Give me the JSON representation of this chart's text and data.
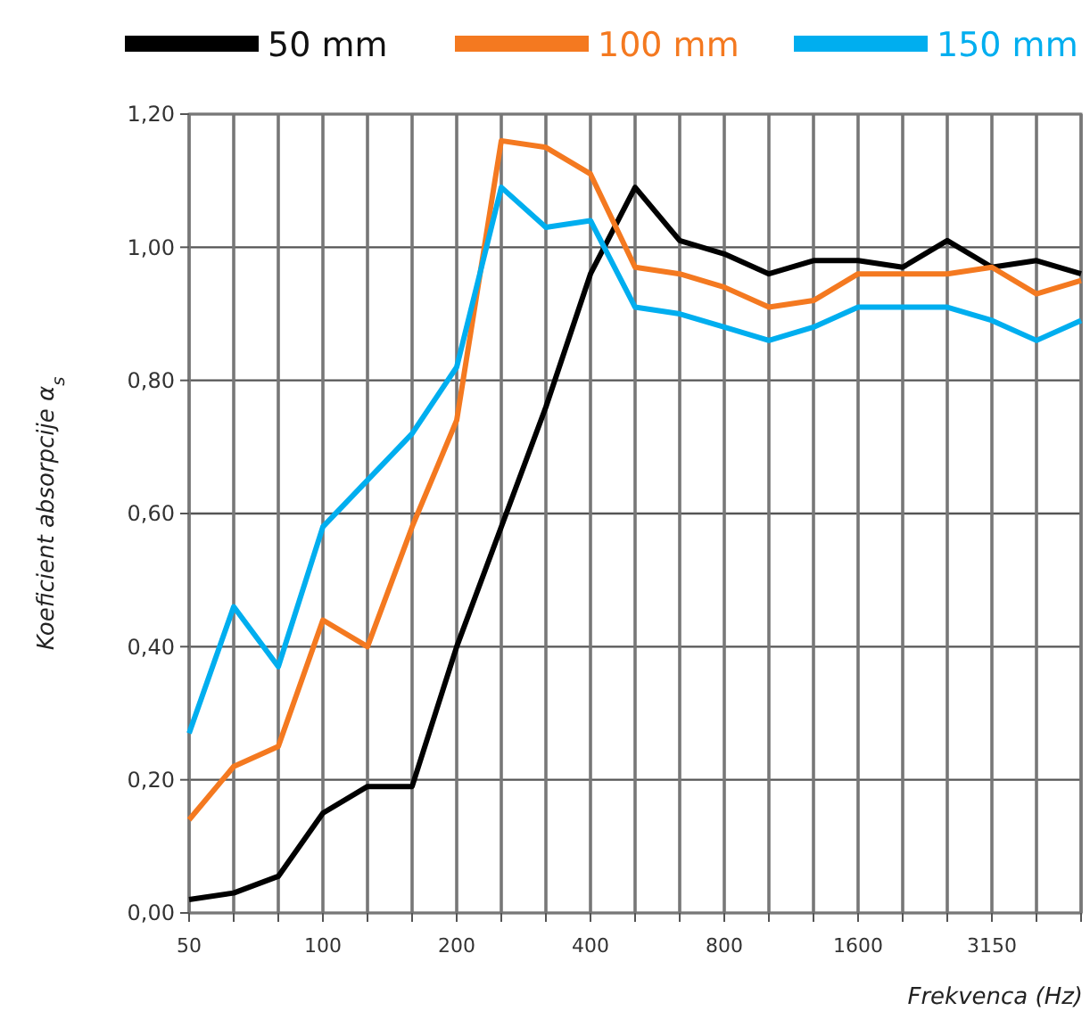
{
  "chart_data": {
    "type": "line",
    "xlabel": "Frekvenca (Hz)",
    "ylabel": "Koeficient absorpcije α$_{s}$",
    "categories": [
      "50",
      null,
      null,
      "100",
      null,
      null,
      "200",
      null,
      null,
      "400",
      null,
      null,
      "800",
      null,
      null,
      "1600",
      null,
      null,
      "3150",
      null,
      null
    ],
    "series": [
      {
        "name": "50 mm",
        "color": "#000000",
        "values": [
          0.02,
          0.03,
          0.055,
          0.15,
          0.19,
          0.19,
          0.4,
          0.58,
          0.76,
          0.96,
          1.09,
          1.01,
          0.99,
          0.96,
          0.98,
          0.98,
          0.97,
          1.01,
          0.97,
          0.98,
          0.96
        ]
      },
      {
        "name": "100 mm",
        "color": "#f47920",
        "values": [
          0.14,
          0.22,
          0.25,
          0.44,
          0.4,
          0.58,
          0.74,
          1.16,
          1.15,
          1.11,
          0.97,
          0.96,
          0.94,
          0.91,
          0.92,
          0.96,
          0.96,
          0.96,
          0.97,
          0.93,
          0.95
        ]
      },
      {
        "name": "150 mm",
        "color": "#00aeef",
        "values": [
          0.27,
          0.46,
          0.37,
          0.58,
          0.65,
          0.72,
          0.82,
          1.09,
          1.03,
          1.04,
          0.91,
          0.9,
          0.88,
          0.86,
          0.88,
          0.91,
          0.91,
          0.91,
          0.89,
          0.86,
          0.89
        ]
      }
    ],
    "ylim": [
      0,
      1.2
    ],
    "yticks": [
      {
        "value": 0,
        "label": "0,00"
      },
      {
        "value": 0.2,
        "label": "0,20"
      },
      {
        "value": 0.4,
        "label": "0,40"
      },
      {
        "value": 0.6,
        "label": "0,60"
      },
      {
        "value": 0.8,
        "label": "0,80"
      },
      {
        "value": 1,
        "label": "1,00"
      },
      {
        "value": 1.2,
        "label": "1,20"
      }
    ],
    "grid": true,
    "legend": "top",
    "line_style": "solid"
  }
}
